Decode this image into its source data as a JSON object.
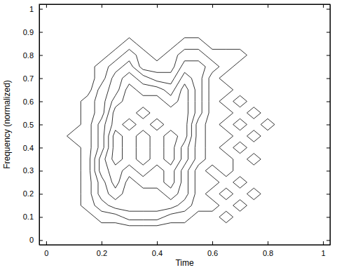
{
  "chart_data": {
    "type": "contour",
    "x_label": "Time",
    "y_label": "Frequency (normalized)",
    "color": "#000000",
    "xlim": [
      -0.025,
      1.025
    ],
    "ylim": [
      -0.02,
      1.02
    ],
    "xticks": [
      0,
      0.2,
      0.4,
      0.6,
      0.8,
      1
    ],
    "yticks": [
      0,
      0.1,
      0.2,
      0.3,
      0.4,
      0.5,
      0.6,
      0.7,
      0.8,
      0.9,
      1
    ],
    "x": [
      0.1,
      0.15,
      0.2,
      0.25,
      0.3,
      0.35,
      0.4,
      0.45,
      0.5,
      0.55,
      0.6,
      0.65,
      0.7,
      0.75,
      0.8,
      0.85
    ],
    "y": [
      0.05,
      0.1,
      0.15,
      0.2,
      0.25,
      0.3,
      0.35,
      0.4,
      0.45,
      0.5,
      0.55,
      0.6,
      0.65,
      0.7,
      0.75,
      0.8,
      0.85,
      0.9
    ],
    "levels": [
      0.5,
      1.5,
      2.5,
      3.5,
      4.5,
      5.5
    ],
    "z": [
      [
        0,
        0,
        0,
        0,
        0,
        0,
        0,
        0,
        0,
        0,
        0,
        0,
        0,
        0,
        0,
        0
      ],
      [
        0,
        0,
        1,
        1,
        2,
        2,
        2,
        1,
        1,
        0,
        0,
        1,
        0,
        0,
        0,
        0
      ],
      [
        0,
        1,
        2,
        3,
        3,
        3,
        3,
        3,
        2,
        1,
        1,
        0,
        1,
        0,
        0,
        0
      ],
      [
        0,
        1,
        3,
        4,
        3,
        3,
        3,
        4,
        3,
        1,
        0,
        1,
        0,
        1,
        0,
        0
      ],
      [
        0,
        1,
        3,
        5,
        3,
        4,
        4,
        5,
        3,
        1,
        1,
        0,
        1,
        0,
        0,
        0
      ],
      [
        0,
        1,
        4,
        5,
        4,
        5,
        4,
        5,
        3,
        1,
        0,
        1,
        0,
        0,
        0,
        0
      ],
      [
        0,
        1,
        4,
        6,
        5,
        6,
        5,
        6,
        4,
        2,
        1,
        1,
        0,
        1,
        0,
        0
      ],
      [
        0,
        1,
        3,
        6,
        5,
        6,
        5,
        6,
        4,
        2,
        1,
        0,
        1,
        0,
        0,
        0
      ],
      [
        1,
        1,
        3,
        6,
        5,
        6,
        5,
        6,
        5,
        2,
        1,
        1,
        0,
        1,
        0,
        0
      ],
      [
        0,
        1,
        3,
        5,
        6,
        5,
        6,
        5,
        5,
        2,
        1,
        0,
        1,
        0,
        1,
        0
      ],
      [
        0,
        1,
        2,
        5,
        5,
        6,
        5,
        5,
        5,
        3,
        1,
        1,
        0,
        1,
        0,
        0
      ],
      [
        0,
        1,
        2,
        4,
        5,
        5,
        5,
        4,
        5,
        3,
        1,
        0,
        1,
        0,
        0,
        0
      ],
      [
        0,
        0,
        2,
        3,
        5,
        4,
        4,
        3,
        5,
        3,
        1,
        1,
        0,
        0,
        0,
        0
      ],
      [
        0,
        0,
        1,
        3,
        4,
        3,
        2,
        2,
        4,
        3,
        1,
        0,
        0,
        0,
        0,
        0
      ],
      [
        0,
        0,
        1,
        2,
        3,
        1,
        1,
        1,
        3,
        3,
        2,
        1,
        0,
        0,
        0,
        0
      ],
      [
        0,
        0,
        0,
        1,
        2,
        1,
        0,
        1,
        2,
        2,
        1,
        1,
        1,
        0,
        0,
        0
      ],
      [
        0,
        0,
        0,
        0,
        1,
        0,
        0,
        0,
        1,
        1,
        0,
        0,
        0,
        0,
        0,
        0
      ],
      [
        0,
        0,
        0,
        0,
        0,
        0,
        0,
        0,
        0,
        0,
        0,
        0,
        0,
        0,
        0,
        0
      ]
    ]
  }
}
